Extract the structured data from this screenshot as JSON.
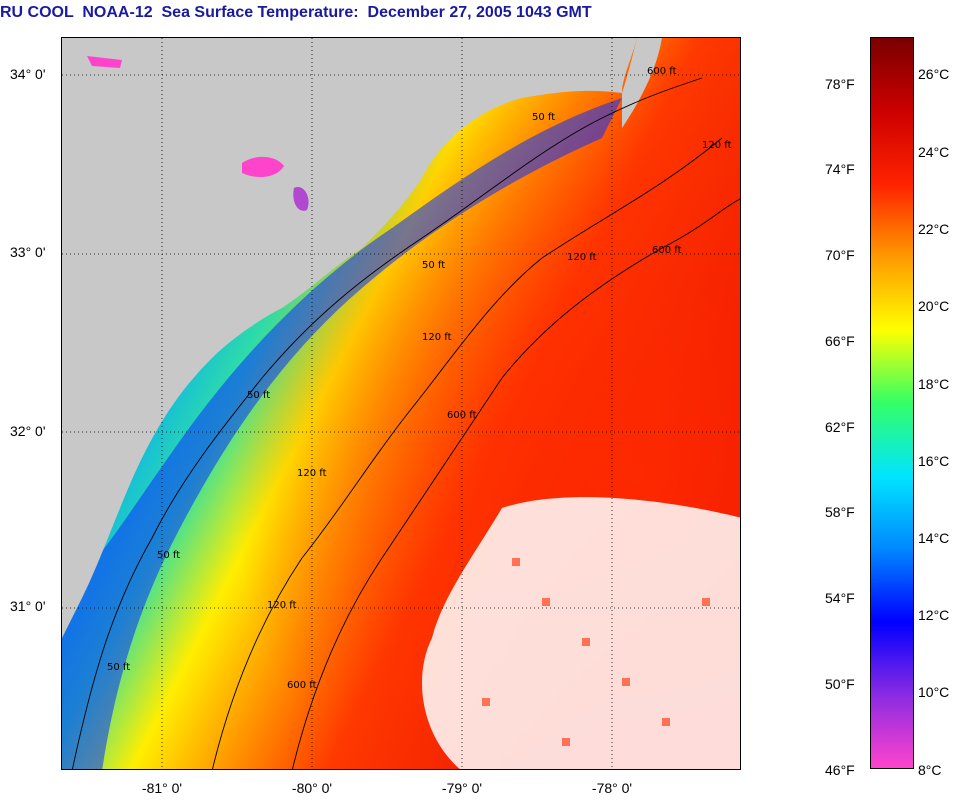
{
  "title": "RU COOL  NOAA-12  Sea Surface Temperature:  December 27, 2005 1043 GMT",
  "map": {
    "latitude_labels": [
      "34° 0'",
      "33° 0'",
      "32° 0'",
      "31° 0'"
    ],
    "longitude_labels": [
      "-81° 0'",
      "-80° 0'",
      "-79° 0'",
      "-78° 0'"
    ],
    "contour_labels": [
      "50 ft",
      "50 ft",
      "50 ft",
      "50 ft",
      "50 ft",
      "120 ft",
      "120 ft",
      "120 ft",
      "120 ft",
      "120 ft",
      "600 ft",
      "600 ft",
      "600 ft",
      "600 ft"
    ],
    "colors": {
      "land": "#c8c8c8",
      "cloud": "#ffffff",
      "contour": "#000000"
    }
  },
  "colorbar": {
    "fahrenheit_labels": [
      "78°F",
      "74°F",
      "70°F",
      "66°F",
      "62°F",
      "58°F",
      "54°F",
      "50°F",
      "46°F"
    ],
    "celsius_labels": [
      "26°C",
      "24°C",
      "22°C",
      "20°C",
      "18°C",
      "16°C",
      "14°C",
      "12°C",
      "10°C",
      "8°C"
    ],
    "colors": [
      "#ff44cc",
      "#8a2be2",
      "#0000ff",
      "#0088ff",
      "#00e5ff",
      "#33ff66",
      "#ffff00",
      "#ff9900",
      "#ff2200",
      "#cc0000",
      "#7a0000"
    ]
  }
}
